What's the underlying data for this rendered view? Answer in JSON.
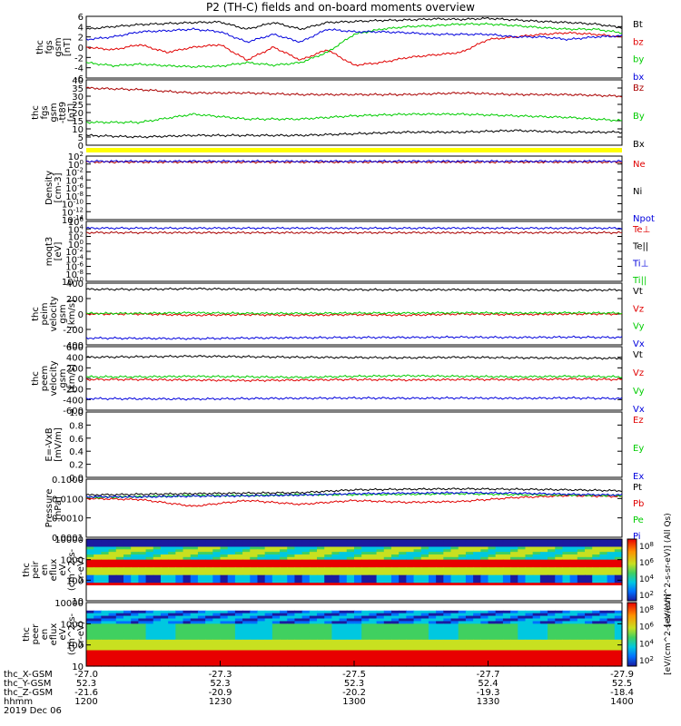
{
  "title": "P2 (TH-C) fields and on-board moments overview",
  "chart_data": [
    {
      "type": "line",
      "ylabel": [
        "thc",
        "fgs",
        "gsm",
        "[nT]"
      ],
      "yticks": [
        "6",
        "4",
        "2",
        "0",
        "-2",
        "-4",
        "-6"
      ],
      "ylim": [
        -6,
        6
      ],
      "legend": [
        {
          "name": "Bt",
          "color": "#000000"
        },
        {
          "name": "bz",
          "color": "#e00000"
        },
        {
          "name": "by",
          "color": "#00cc00"
        },
        {
          "name": "bx",
          "color": "#0000dd"
        }
      ],
      "series": [
        {
          "name": "Bt",
          "color": "#000000",
          "x": [
            0,
            0.05,
            0.1,
            0.15,
            0.2,
            0.25,
            0.3,
            0.35,
            0.4,
            0.45,
            0.5,
            0.55,
            0.6,
            0.65,
            0.7,
            0.75,
            0.8,
            0.85,
            0.9,
            0.95,
            1
          ],
          "y": [
            3.5,
            4.0,
            4.4,
            4.6,
            4.8,
            4.9,
            3.5,
            4.8,
            3.5,
            4.8,
            5.0,
            5.2,
            5.3,
            5.5,
            5.4,
            5.6,
            5.3,
            5.0,
            4.8,
            4.5,
            3.8
          ]
        },
        {
          "name": "bz",
          "color": "#e00000",
          "x": [
            0,
            0.05,
            0.1,
            0.15,
            0.2,
            0.25,
            0.3,
            0.35,
            0.4,
            0.45,
            0.5,
            0.55,
            0.6,
            0.65,
            0.7,
            0.75,
            0.8,
            0.85,
            0.9,
            0.95,
            1
          ],
          "y": [
            0.0,
            -0.5,
            0.5,
            -1.0,
            0.0,
            0.5,
            -2.5,
            0.0,
            -2.5,
            -0.5,
            -3.5,
            -3.0,
            -2.0,
            -1.5,
            -1.0,
            1.5,
            2.0,
            2.5,
            2.8,
            2.5,
            2.0
          ]
        },
        {
          "name": "by",
          "color": "#00cc00",
          "x": [
            0,
            0.05,
            0.1,
            0.15,
            0.2,
            0.25,
            0.3,
            0.35,
            0.4,
            0.45,
            0.5,
            0.55,
            0.6,
            0.65,
            0.7,
            0.75,
            0.8,
            0.85,
            0.9,
            0.95,
            1
          ],
          "y": [
            -3.0,
            -3.6,
            -3.3,
            -3.6,
            -3.8,
            -3.7,
            -3.0,
            -3.5,
            -3.0,
            -1.0,
            2.5,
            3.5,
            4.0,
            4.2,
            4.5,
            4.5,
            4.2,
            3.8,
            3.5,
            3.5,
            2.8
          ]
        },
        {
          "name": "bx",
          "color": "#0000dd",
          "x": [
            0,
            0.05,
            0.1,
            0.15,
            0.2,
            0.25,
            0.3,
            0.35,
            0.4,
            0.45,
            0.5,
            0.55,
            0.6,
            0.65,
            0.7,
            0.75,
            0.8,
            0.85,
            0.9,
            0.95,
            1
          ],
          "y": [
            1.5,
            2.0,
            3.0,
            3.2,
            3.5,
            3.0,
            1.0,
            2.5,
            1.0,
            3.5,
            3.0,
            3.0,
            2.8,
            2.5,
            2.5,
            2.5,
            2.0,
            2.0,
            1.5,
            2.0,
            2.2
          ]
        }
      ]
    },
    {
      "type": "line",
      "ylabel": [
        "thc",
        "fgs",
        "gsm",
        "-tt89",
        "[nT]"
      ],
      "yticks": [
        "40",
        "35",
        "30",
        "25",
        "20",
        "15",
        "10",
        "5",
        "0"
      ],
      "ylim": [
        0,
        40
      ],
      "legend": [
        {
          "name": "Bz",
          "color": "#aa0000"
        },
        {
          "name": "By",
          "color": "#00cc00"
        },
        {
          "name": "Bx",
          "color": "#000000"
        }
      ],
      "series": [
        {
          "name": "Bz",
          "color": "#aa0000",
          "x": [
            0,
            0.1,
            0.2,
            0.3,
            0.4,
            0.5,
            0.6,
            0.7,
            0.8,
            0.9,
            1
          ],
          "y": [
            35,
            34,
            32,
            32,
            31,
            31,
            31,
            32,
            31,
            31,
            30
          ]
        },
        {
          "name": "By",
          "color": "#00cc00",
          "x": [
            0,
            0.1,
            0.2,
            0.3,
            0.4,
            0.5,
            0.6,
            0.7,
            0.8,
            0.9,
            1
          ],
          "y": [
            14,
            14,
            19,
            16,
            16,
            18,
            19,
            19,
            18,
            17,
            15
          ]
        },
        {
          "name": "Bx",
          "color": "#000000",
          "x": [
            0,
            0.1,
            0.2,
            0.3,
            0.4,
            0.5,
            0.6,
            0.7,
            0.8,
            0.9,
            1
          ],
          "y": [
            6,
            5,
            6,
            6,
            6,
            7,
            8,
            8,
            9,
            8,
            8
          ]
        }
      ]
    },
    {
      "type": "line",
      "ylabel": [
        "Density",
        "[cm-3]"
      ],
      "yticks": [
        "10^2",
        "10^0",
        "10^-2",
        "10^-4",
        "10^-6",
        "10^-8",
        "10^-10",
        "10^-12",
        "10^-14"
      ],
      "ylim": [
        -14,
        2
      ],
      "yscale": "log",
      "legend": [
        {
          "name": "Ne",
          "color": "#e00000"
        },
        {
          "name": "Ni",
          "color": "#000000"
        },
        {
          "name": "Npot",
          "color": "#0000dd"
        }
      ],
      "series": [
        {
          "name": "Ne",
          "color": "#aa0000",
          "x": [
            0,
            1
          ],
          "y": [
            0.5,
            0.5
          ]
        },
        {
          "name": "Npot",
          "color": "#0000dd",
          "x": [
            0,
            1
          ],
          "y": [
            0.7,
            0.7
          ]
        }
      ]
    },
    {
      "type": "line",
      "ylabel": [
        "moqt3",
        "[eV]"
      ],
      "yticks": [
        "10^6",
        "10^4",
        "10^2",
        "10^0",
        "10^-2",
        "10^-4",
        "10^-6",
        "10^-8",
        "10^-10"
      ],
      "ylim": [
        -10,
        6
      ],
      "yscale": "log",
      "legend": [
        {
          "name": "Te⊥",
          "color": "#e00000"
        },
        {
          "name": "Te||",
          "color": "#000000"
        },
        {
          "name": "Ti⊥",
          "color": "#0000dd"
        },
        {
          "name": "Ti||",
          "color": "#00cc00"
        }
      ],
      "series": [
        {
          "name": "Te⊥",
          "color": "#0000dd",
          "x": [
            0,
            1
          ],
          "y": [
            4.2,
            4.2
          ]
        },
        {
          "name": "Te||",
          "color": "#aa0000",
          "x": [
            0,
            1
          ],
          "y": [
            3.0,
            3.0
          ]
        }
      ]
    },
    {
      "type": "line",
      "ylabel": [
        "thc",
        "peim",
        "velocity",
        "gsm",
        "[km/s]"
      ],
      "yticks": [
        "400",
        "200",
        "0",
        "-200",
        "-400"
      ],
      "ylim": [
        -500,
        500
      ],
      "legend": [
        {
          "name": "Vt",
          "color": "#000000"
        },
        {
          "name": "Vz",
          "color": "#e00000"
        },
        {
          "name": "Vy",
          "color": "#00cc00"
        },
        {
          "name": "Vx",
          "color": "#0000dd"
        }
      ],
      "series": [
        {
          "name": "Vt",
          "color": "#000000",
          "x": [
            0,
            0.1,
            0.2,
            0.3,
            0.4,
            0.5,
            0.6,
            0.7,
            0.8,
            0.9,
            1
          ],
          "y": [
            400,
            400,
            410,
            400,
            400,
            395,
            390,
            395,
            390,
            385,
            390
          ]
        },
        {
          "name": "Vz",
          "color": "#e00000",
          "x": [
            0,
            0.1,
            0.2,
            0.3,
            0.4,
            0.5,
            0.6,
            0.7,
            0.8,
            0.9,
            1
          ],
          "y": [
            0,
            0,
            -20,
            -10,
            -20,
            -10,
            -20,
            0,
            -10,
            0,
            0
          ]
        },
        {
          "name": "Vy",
          "color": "#00cc00",
          "x": [
            0,
            0.1,
            0.2,
            0.3,
            0.4,
            0.5,
            0.6,
            0.7,
            0.8,
            0.9,
            1
          ],
          "y": [
            10,
            10,
            20,
            10,
            10,
            15,
            15,
            20,
            15,
            20,
            15
          ]
        },
        {
          "name": "Vx",
          "color": "#0000dd",
          "x": [
            0,
            0.1,
            0.2,
            0.3,
            0.4,
            0.5,
            0.6,
            0.7,
            0.8,
            0.9,
            1
          ],
          "y": [
            -390,
            -395,
            -400,
            -390,
            -385,
            -380,
            -380,
            -375,
            -380,
            -375,
            -380
          ]
        }
      ]
    },
    {
      "type": "line",
      "ylabel": [
        "thc",
        "peem",
        "velocity",
        "gsm",
        "[km/s]"
      ],
      "yticks": [
        "600",
        "400",
        "200",
        "0",
        "-200",
        "-400",
        "-600"
      ],
      "ylim": [
        -600,
        600
      ],
      "legend": [
        {
          "name": "Vt",
          "color": "#000000"
        },
        {
          "name": "Vz",
          "color": "#e00000"
        },
        {
          "name": "Vy",
          "color": "#00cc00"
        },
        {
          "name": "Vx",
          "color": "#0000dd"
        }
      ],
      "series": [
        {
          "name": "Vt",
          "color": "#000000",
          "x": [
            0,
            0.1,
            0.2,
            0.3,
            0.4,
            0.5,
            0.6,
            0.7,
            0.8,
            0.9,
            1
          ],
          "y": [
            400,
            410,
            420,
            410,
            400,
            395,
            390,
            400,
            390,
            385,
            380
          ]
        },
        {
          "name": "Vz",
          "color": "#e00000",
          "x": [
            0,
            0.1,
            0.2,
            0.3,
            0.4,
            0.5,
            0.6,
            0.7,
            0.8,
            0.9,
            1
          ],
          "y": [
            -20,
            -20,
            -30,
            -40,
            -30,
            -20,
            -30,
            -20,
            -20,
            -10,
            -20
          ]
        },
        {
          "name": "Vy",
          "color": "#00cc00",
          "x": [
            0,
            0.1,
            0.2,
            0.3,
            0.4,
            0.5,
            0.6,
            0.7,
            0.8,
            0.9,
            1
          ],
          "y": [
            30,
            30,
            40,
            30,
            20,
            40,
            50,
            40,
            30,
            40,
            30
          ]
        },
        {
          "name": "Vx",
          "color": "#0000dd",
          "x": [
            0,
            0.1,
            0.2,
            0.3,
            0.4,
            0.5,
            0.6,
            0.7,
            0.8,
            0.9,
            1
          ],
          "y": [
            -380,
            -385,
            -390,
            -380,
            -375,
            -370,
            -375,
            -370,
            -375,
            -370,
            -380
          ]
        }
      ]
    },
    {
      "type": "line",
      "ylabel": [
        "E=-VxB",
        "[mV/m]"
      ],
      "yticks": [
        "1.0",
        "0.8",
        "0.6",
        "0.4",
        "0.2",
        "0.0"
      ],
      "ylim": [
        0,
        1
      ],
      "legend": [
        {
          "name": "Ez",
          "color": "#e00000"
        },
        {
          "name": "Ey",
          "color": "#00cc00"
        },
        {
          "name": "Ex",
          "color": "#0000dd"
        }
      ],
      "series": []
    },
    {
      "type": "line",
      "ylabel": [
        "Pressure",
        "[nPa]"
      ],
      "yticks": [
        "0.1000",
        "0.0100",
        "0.0010",
        "0.0001"
      ],
      "ylim": [
        -4,
        -1
      ],
      "yscale": "log",
      "legend": [
        {
          "name": "Pt",
          "color": "#000000"
        },
        {
          "name": "Pb",
          "color": "#e00000"
        },
        {
          "name": "Pe",
          "color": "#00cc00"
        },
        {
          "name": "Pi",
          "color": "#0000dd"
        }
      ],
      "series": [
        {
          "name": "Pt",
          "color": "#000000",
          "x": [
            0,
            0.1,
            0.2,
            0.3,
            0.4,
            0.5,
            0.6,
            0.7,
            0.8,
            0.9,
            1
          ],
          "y": [
            -1.82,
            -1.78,
            -1.75,
            -1.72,
            -1.7,
            -1.55,
            -1.52,
            -1.5,
            -1.52,
            -1.55,
            -1.6
          ]
        },
        {
          "name": "Pb",
          "color": "#e00000",
          "x": [
            0,
            0.1,
            0.2,
            0.3,
            0.4,
            0.5,
            0.6,
            0.7,
            0.8,
            0.9,
            1
          ],
          "y": [
            -2.0,
            -2.05,
            -2.4,
            -2.1,
            -2.3,
            -2.1,
            -2.2,
            -2.15,
            -1.95,
            -1.85,
            -1.9
          ]
        },
        {
          "name": "Pe",
          "color": "#00cc00",
          "x": [
            0,
            0.1,
            0.2,
            0.3,
            0.4,
            0.5,
            0.6,
            0.7,
            0.8,
            0.9,
            1
          ],
          "y": [
            -1.95,
            -1.9,
            -1.85,
            -1.85,
            -1.8,
            -1.8,
            -1.78,
            -1.75,
            -1.8,
            -1.82,
            -1.85
          ]
        },
        {
          "name": "Pi",
          "color": "#0000dd",
          "x": [
            0,
            0.1,
            0.2,
            0.3,
            0.4,
            0.5,
            0.6,
            0.7,
            0.8,
            0.9,
            1
          ],
          "y": [
            -1.9,
            -1.92,
            -1.88,
            -1.86,
            -1.82,
            -1.75,
            -1.72,
            -1.7,
            -1.72,
            -1.78,
            -1.82
          ]
        }
      ]
    },
    {
      "type": "heatmap",
      "ylabel": [
        "thc",
        "peir",
        "en",
        "eflux",
        "eV",
        "(cm^2-s-",
        "sr-eV)"
      ],
      "yticks": [
        "10000",
        "1000",
        "100",
        "10"
      ],
      "yscale": "log",
      "ylim": [
        5,
        20000
      ]
    },
    {
      "type": "heatmap",
      "ylabel": [
        "thc",
        "peer",
        "en",
        "eflux",
        "eV",
        "(cm^2-s-",
        "sr-eV)"
      ],
      "yticks": [
        "10000",
        "1000",
        "100",
        "10"
      ],
      "yscale": "log",
      "ylim": [
        5,
        20000
      ]
    }
  ],
  "colorbars": [
    {
      "ticks": [
        "10^8",
        "10^6",
        "10^4",
        "10^2"
      ],
      "label": "[eV/(cm^2-s-sr-eV)] (All Qs)"
    },
    {
      "ticks": [
        "10^8",
        "10^6",
        "10^4",
        "10^2"
      ],
      "label": "[eV/(cm^2-s-sr-eV)]"
    }
  ],
  "xaxis": {
    "rows": [
      {
        "label": "thc_X-GSM",
        "values": [
          "-27.0",
          "-27.3",
          "-27.5",
          "-27.7",
          "-27.9"
        ]
      },
      {
        "label": "thc_Y-GSM",
        "values": [
          "52.3",
          "52.3",
          "52.3",
          "52.4",
          "52.5"
        ]
      },
      {
        "label": "thc_Z-GSM",
        "values": [
          "-21.6",
          "-20.9",
          "-20.2",
          "-19.3",
          "-18.4"
        ]
      },
      {
        "label": "hhmm",
        "values": [
          "1200",
          "1230",
          "1300",
          "1330",
          "1400"
        ]
      }
    ],
    "date": "2019 Dec 06"
  }
}
